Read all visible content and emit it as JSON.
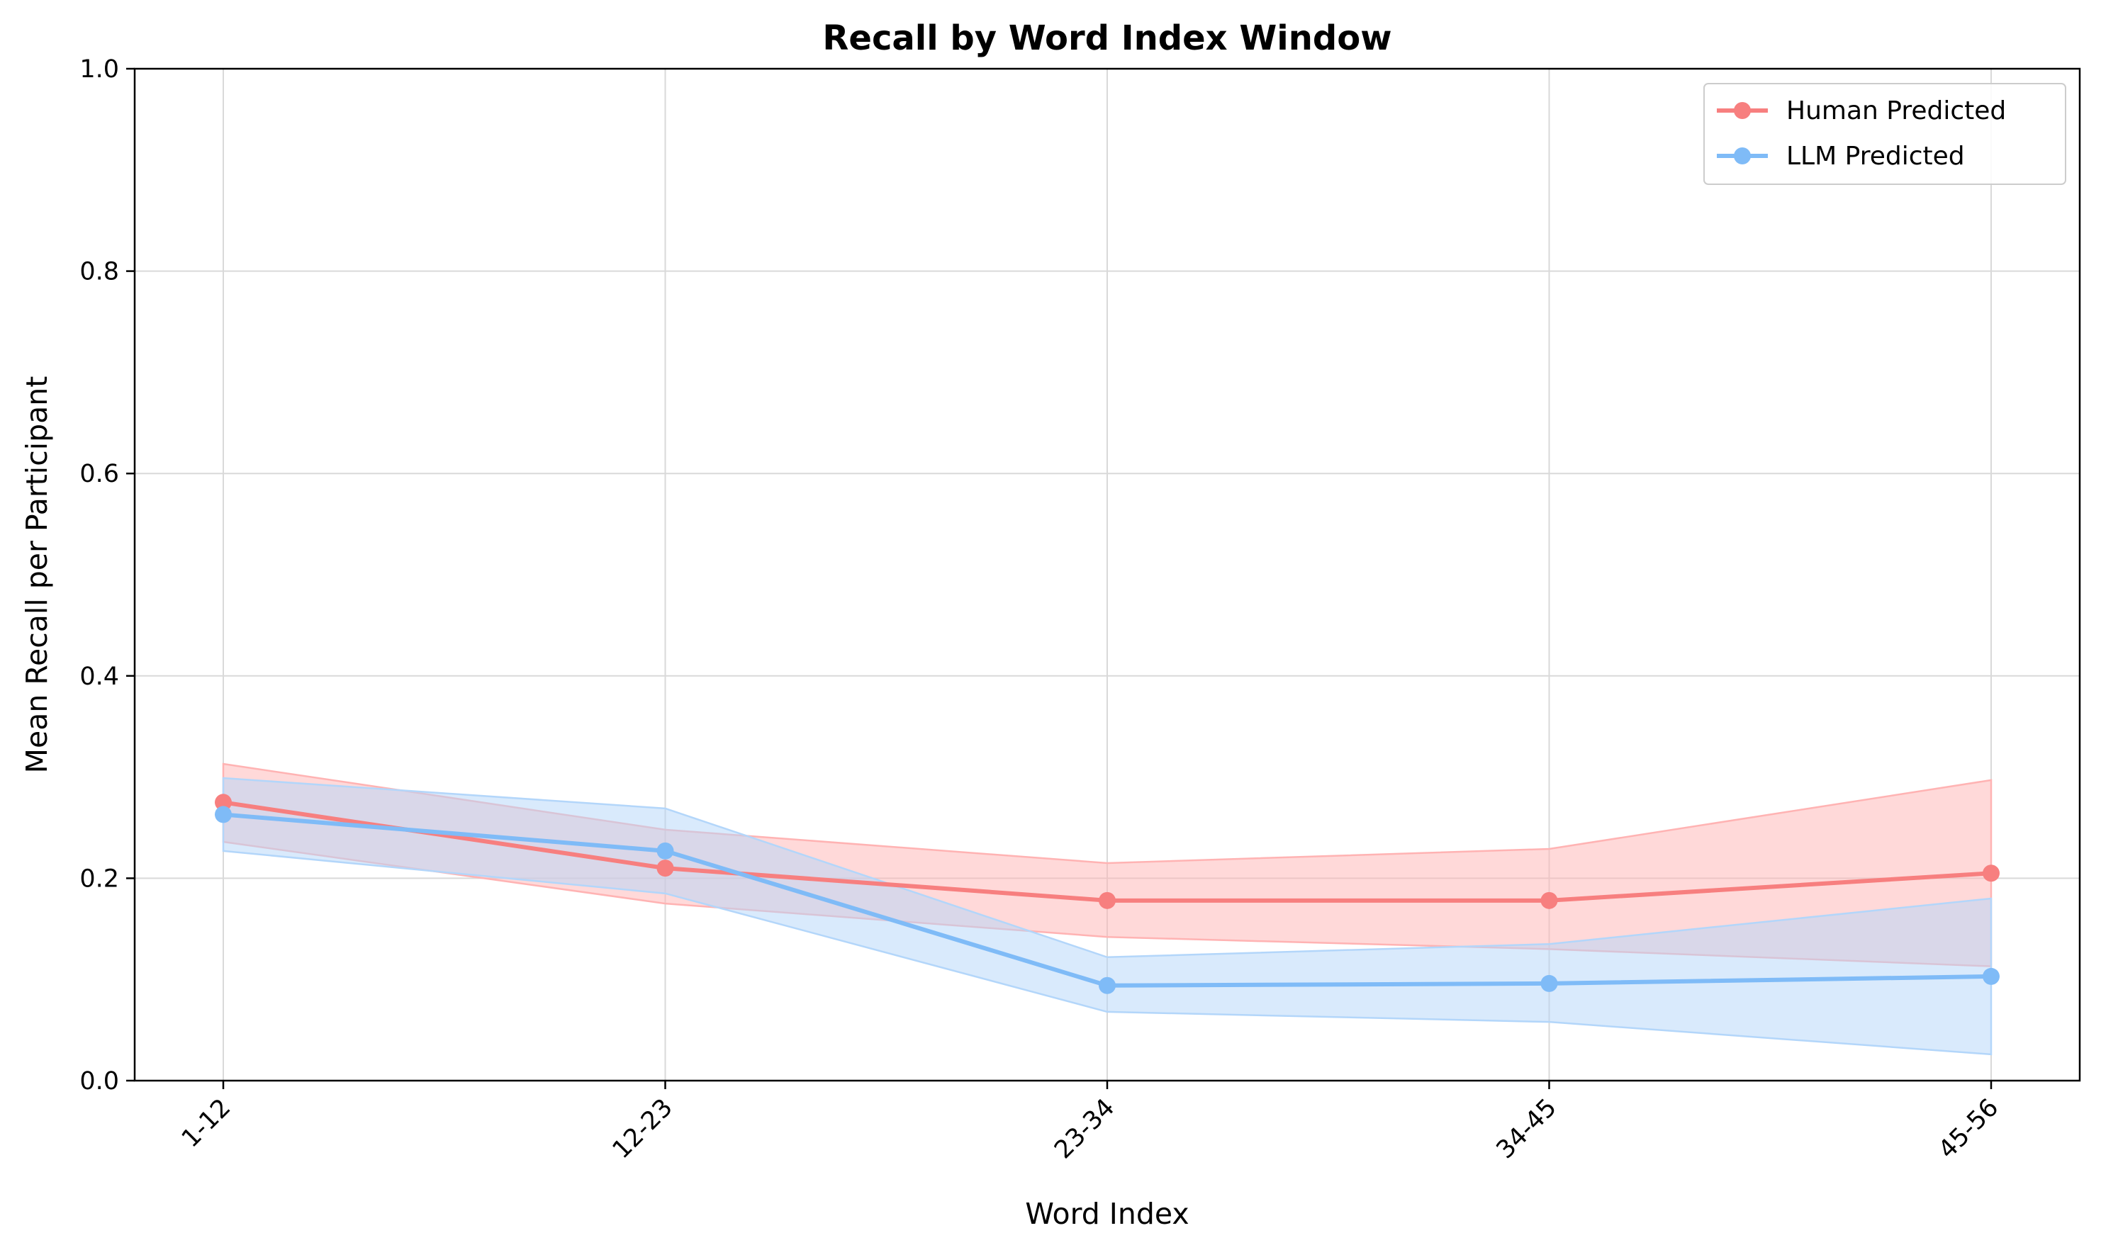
{
  "chart_data": {
    "type": "line",
    "title": "Recall by Word Index Window",
    "xlabel": "Word Index",
    "ylabel": "Mean Recall per Participant",
    "categories": [
      "1-12",
      "12-23",
      "23-34",
      "34-45",
      "45-56"
    ],
    "ylim": [
      0,
      1.0
    ],
    "yticks": [
      "0.0",
      "0.2",
      "0.4",
      "0.6",
      "0.8",
      "1.0"
    ],
    "grid": true,
    "legend_position": "top-right",
    "series": [
      {
        "name": "Human Predicted",
        "color": "#f77f7f",
        "band_color": "#ffb3b3",
        "values": [
          0.275,
          0.21,
          0.178,
          0.178,
          0.205
        ],
        "lower": [
          0.236,
          0.175,
          0.142,
          0.13,
          0.113
        ],
        "upper": [
          0.313,
          0.248,
          0.215,
          0.229,
          0.297
        ]
      },
      {
        "name": "LLM Predicted",
        "color": "#7fbbf7",
        "band_color": "#b3d6fa",
        "values": [
          0.263,
          0.227,
          0.094,
          0.096,
          0.103
        ],
        "lower": [
          0.227,
          0.185,
          0.068,
          0.058,
          0.026
        ],
        "upper": [
          0.299,
          0.269,
          0.122,
          0.135,
          0.18
        ]
      }
    ]
  }
}
